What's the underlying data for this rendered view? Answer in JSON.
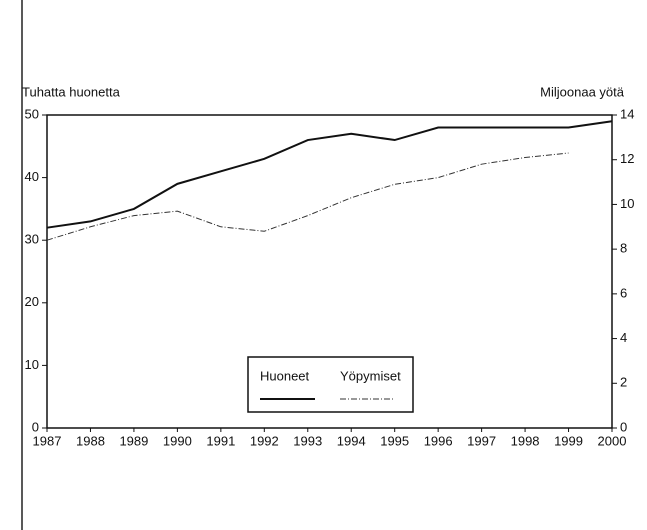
{
  "chart_data": {
    "type": "line",
    "x": [
      1987,
      1988,
      1989,
      1990,
      1991,
      1992,
      1993,
      1994,
      1995,
      1996,
      1997,
      1998,
      1999,
      2000
    ],
    "xlim": [
      1987,
      2000
    ],
    "xticks": [
      1987,
      1988,
      1989,
      1990,
      1991,
      1992,
      1993,
      1994,
      1995,
      1996,
      1997,
      1998,
      1999,
      2000
    ],
    "ylabel": "Tuhatta huonetta",
    "y2label": "Miljoonaa yötä",
    "ylim": [
      0,
      50
    ],
    "yticks": [
      0,
      10,
      20,
      30,
      40,
      50
    ],
    "y2lim": [
      0,
      14
    ],
    "y2ticks": [
      0,
      2,
      4,
      6,
      8,
      10,
      12,
      14
    ],
    "legend": "lower center",
    "series": [
      {
        "name": "Huoneet",
        "color": "#111111",
        "values": [
          32,
          33,
          35,
          39,
          41,
          43,
          46,
          47,
          46,
          48,
          48,
          48,
          48,
          49
        ]
      },
      {
        "name": "Yöpymiset",
        "color": "#333333",
        "axis": "y2",
        "values": [
          8.4,
          9.0,
          9.5,
          9.7,
          9.0,
          8.8,
          9.5,
          10.3,
          10.9,
          11.2,
          11.8,
          12.1,
          12.3,
          null
        ]
      }
    ]
  }
}
